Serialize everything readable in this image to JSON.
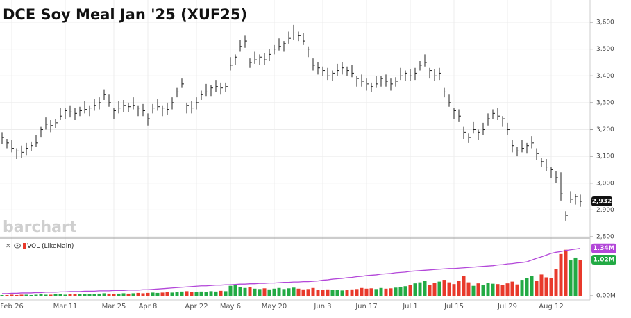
{
  "chart_data": [
    {
      "type": "hlc",
      "title": "DCE Soy Meal Jan '25 (XUF25)",
      "watermark": "barchart",
      "color": "#222222",
      "categories": [
        null,
        null,
        "Feb 26",
        null,
        null,
        null,
        null,
        null,
        null,
        null,
        null,
        null,
        null,
        "Mar 11",
        null,
        null,
        null,
        null,
        null,
        null,
        null,
        null,
        null,
        "Mar 25",
        null,
        null,
        null,
        null,
        null,
        null,
        "Apr 8",
        null,
        null,
        null,
        null,
        null,
        null,
        null,
        null,
        null,
        "Apr 22",
        null,
        null,
        null,
        null,
        null,
        null,
        "May 6",
        null,
        null,
        null,
        null,
        null,
        null,
        null,
        null,
        "May 20",
        null,
        null,
        null,
        null,
        null,
        null,
        null,
        null,
        null,
        "Jun 3",
        null,
        null,
        null,
        null,
        null,
        null,
        null,
        null,
        "Jun 17",
        null,
        null,
        null,
        null,
        null,
        null,
        null,
        null,
        "Jul 1",
        null,
        null,
        null,
        null,
        null,
        null,
        null,
        null,
        "Jul 15",
        null,
        null,
        null,
        null,
        null,
        null,
        null,
        null,
        null,
        null,
        "Jul 29",
        null,
        null,
        null,
        null,
        null,
        null,
        null,
        null,
        "Aug 12",
        null,
        null,
        null,
        null,
        null,
        null
      ],
      "high": [
        3190,
        3165,
        3160,
        3130,
        3140,
        3150,
        3155,
        3180,
        3210,
        3245,
        3235,
        3240,
        3280,
        3280,
        3290,
        3280,
        3285,
        3305,
        3290,
        3315,
        3320,
        3350,
        3330,
        3280,
        3305,
        3310,
        3300,
        3320,
        3290,
        3295,
        3260,
        3295,
        3315,
        3290,
        3300,
        3320,
        3355,
        3390,
        3300,
        3305,
        3320,
        3345,
        3370,
        3365,
        3385,
        3375,
        3375,
        3470,
        3480,
        3535,
        3550,
        3465,
        3490,
        3480,
        3485,
        3500,
        3515,
        3540,
        3530,
        3565,
        3590,
        3565,
        3560,
        3510,
        3465,
        3450,
        3435,
        3430,
        3420,
        3445,
        3450,
        3435,
        3440,
        3400,
        3405,
        3390,
        3375,
        3400,
        3400,
        3405,
        3390,
        3395,
        3430,
        3420,
        3425,
        3430,
        3455,
        3480,
        3430,
        3425,
        3430,
        3355,
        3330,
        3280,
        3275,
        3210,
        3185,
        3230,
        3200,
        3225,
        3260,
        3275,
        3280,
        3250,
        3225,
        3160,
        3135,
        3160,
        3150,
        3175,
        3130,
        3095,
        3090,
        3060,
        3045,
        3040,
        2895,
        2970,
        2960,
        2957
      ],
      "low": [
        3145,
        3130,
        3115,
        3090,
        3095,
        3105,
        3120,
        3135,
        3170,
        3200,
        3190,
        3205,
        3235,
        3240,
        3245,
        3235,
        3250,
        3260,
        3250,
        3270,
        3275,
        3310,
        3285,
        3240,
        3260,
        3265,
        3265,
        3275,
        3250,
        3250,
        3215,
        3260,
        3270,
        3250,
        3255,
        3275,
        3320,
        3355,
        3260,
        3260,
        3275,
        3310,
        3325,
        3325,
        3340,
        3330,
        3340,
        3420,
        3440,
        3490,
        3505,
        3430,
        3445,
        3440,
        3440,
        3455,
        3480,
        3495,
        3490,
        3520,
        3535,
        3530,
        3515,
        3470,
        3420,
        3405,
        3400,
        3385,
        3380,
        3400,
        3405,
        3400,
        3395,
        3360,
        3360,
        3345,
        3340,
        3355,
        3360,
        3360,
        3345,
        3360,
        3385,
        3380,
        3380,
        3385,
        3420,
        3435,
        3390,
        3380,
        3385,
        3320,
        3285,
        3240,
        3230,
        3165,
        3150,
        3185,
        3160,
        3180,
        3215,
        3240,
        3235,
        3210,
        3180,
        3115,
        3100,
        3115,
        3110,
        3130,
        3085,
        3060,
        3045,
        3020,
        3000,
        2935,
        2860,
        2925,
        2920,
        2912
      ],
      "close": [
        3170,
        3150,
        3130,
        3120,
        3115,
        3130,
        3140,
        3150,
        3200,
        3220,
        3215,
        3225,
        3250,
        3270,
        3265,
        3260,
        3270,
        3275,
        3280,
        3290,
        3300,
        3330,
        3300,
        3270,
        3280,
        3290,
        3285,
        3290,
        3280,
        3270,
        3240,
        3280,
        3285,
        3280,
        3275,
        3300,
        3340,
        3370,
        3290,
        3280,
        3300,
        3330,
        3340,
        3355,
        3360,
        3355,
        3360,
        3440,
        3470,
        3510,
        3530,
        3450,
        3460,
        3470,
        3460,
        3480,
        3500,
        3510,
        3520,
        3540,
        3560,
        3550,
        3530,
        3500,
        3440,
        3430,
        3420,
        3400,
        3410,
        3420,
        3430,
        3420,
        3410,
        3390,
        3380,
        3370,
        3360,
        3370,
        3390,
        3380,
        3370,
        3380,
        3400,
        3410,
        3400,
        3410,
        3440,
        3450,
        3420,
        3400,
        3410,
        3340,
        3300,
        3270,
        3250,
        3190,
        3170,
        3200,
        3190,
        3200,
        3240,
        3260,
        3250,
        3240,
        3200,
        3140,
        3120,
        3130,
        3140,
        3150,
        3110,
        3080,
        3060,
        3050,
        3020,
        2960,
        2880,
        2940,
        2950,
        2932
      ],
      "last_label": "2,932",
      "ylim": [
        2800,
        3670
      ],
      "yticks": [
        {
          "value": 2800,
          "label": "2,800"
        },
        {
          "value": 2900,
          "label": "2,900"
        },
        {
          "value": 3000,
          "label": "3,000"
        },
        {
          "value": 3100,
          "label": "3,100"
        },
        {
          "value": 3200,
          "label": "3,200"
        },
        {
          "value": 3300,
          "label": "3,300"
        },
        {
          "value": 3400,
          "label": "3,400"
        },
        {
          "value": 3500,
          "label": "3,500"
        },
        {
          "value": 3600,
          "label": "3,600"
        }
      ],
      "grid": true
    },
    {
      "type": "bar",
      "series": [
        {
          "name": "VOL (LikeMain)",
          "type": "bar",
          "up_color": "#22aa44",
          "down_color": "#e8392b",
          "last_color": "#22aa44",
          "last_label": "1.02M",
          "values": [
            0.02,
            0.02,
            0.03,
            0.02,
            0.03,
            0.03,
            0.02,
            0.03,
            0.04,
            0.03,
            0.03,
            0.04,
            0.04,
            0.03,
            0.05,
            0.04,
            0.04,
            0.05,
            0.04,
            0.05,
            0.06,
            0.07,
            0.06,
            0.05,
            0.06,
            0.07,
            0.06,
            0.07,
            0.08,
            0.07,
            0.08,
            0.09,
            0.08,
            0.09,
            0.1,
            0.09,
            0.11,
            0.12,
            0.13,
            0.1,
            0.11,
            0.12,
            0.11,
            0.13,
            0.12,
            0.14,
            0.13,
            0.28,
            0.3,
            0.25,
            0.22,
            0.24,
            0.2,
            0.19,
            0.21,
            0.18,
            0.2,
            0.22,
            0.19,
            0.21,
            0.23,
            0.2,
            0.18,
            0.19,
            0.22,
            0.17,
            0.16,
            0.18,
            0.17,
            0.16,
            0.15,
            0.17,
            0.18,
            0.19,
            0.22,
            0.2,
            0.21,
            0.19,
            0.22,
            0.2,
            0.21,
            0.23,
            0.25,
            0.27,
            0.3,
            0.35,
            0.38,
            0.42,
            0.3,
            0.36,
            0.4,
            0.45,
            0.38,
            0.33,
            0.42,
            0.55,
            0.38,
            0.28,
            0.35,
            0.3,
            0.36,
            0.34,
            0.33,
            0.3,
            0.35,
            0.4,
            0.32,
            0.45,
            0.5,
            0.55,
            0.42,
            0.6,
            0.52,
            0.5,
            0.75,
            1.18,
            1.3,
            1.0,
            1.08,
            1.02
          ]
        },
        {
          "type": "line",
          "color": "#b347d9",
          "last_label": "1.34M",
          "values": [
            0.06,
            0.06,
            0.07,
            0.07,
            0.08,
            0.08,
            0.08,
            0.09,
            0.09,
            0.1,
            0.1,
            0.1,
            0.11,
            0.11,
            0.12,
            0.12,
            0.12,
            0.13,
            0.13,
            0.13,
            0.14,
            0.14,
            0.14,
            0.15,
            0.15,
            0.15,
            0.16,
            0.16,
            0.16,
            0.17,
            0.17,
            0.18,
            0.19,
            0.2,
            0.21,
            0.22,
            0.23,
            0.24,
            0.25,
            0.26,
            0.27,
            0.28,
            0.28,
            0.29,
            0.3,
            0.3,
            0.31,
            0.31,
            0.32,
            0.33,
            0.33,
            0.34,
            0.34,
            0.35,
            0.35,
            0.36,
            0.36,
            0.37,
            0.38,
            0.38,
            0.39,
            0.39,
            0.4,
            0.4,
            0.41,
            0.42,
            0.44,
            0.45,
            0.47,
            0.48,
            0.49,
            0.51,
            0.52,
            0.54,
            0.55,
            0.57,
            0.58,
            0.59,
            0.61,
            0.62,
            0.63,
            0.65,
            0.66,
            0.67,
            0.69,
            0.7,
            0.71,
            0.72,
            0.73,
            0.74,
            0.75,
            0.76,
            0.77,
            0.77,
            0.78,
            0.79,
            0.8,
            0.81,
            0.82,
            0.83,
            0.84,
            0.85,
            0.87,
            0.88,
            0.9,
            0.91,
            0.93,
            0.94,
            0.96,
            1.01,
            1.06,
            1.1,
            1.15,
            1.2,
            1.23,
            1.25,
            1.28,
            1.3,
            1.32,
            1.34
          ]
        }
      ],
      "ylim": [
        0,
        1.55
      ],
      "yticks": [
        {
          "value": 0,
          "label": "0.00M"
        }
      ]
    }
  ]
}
